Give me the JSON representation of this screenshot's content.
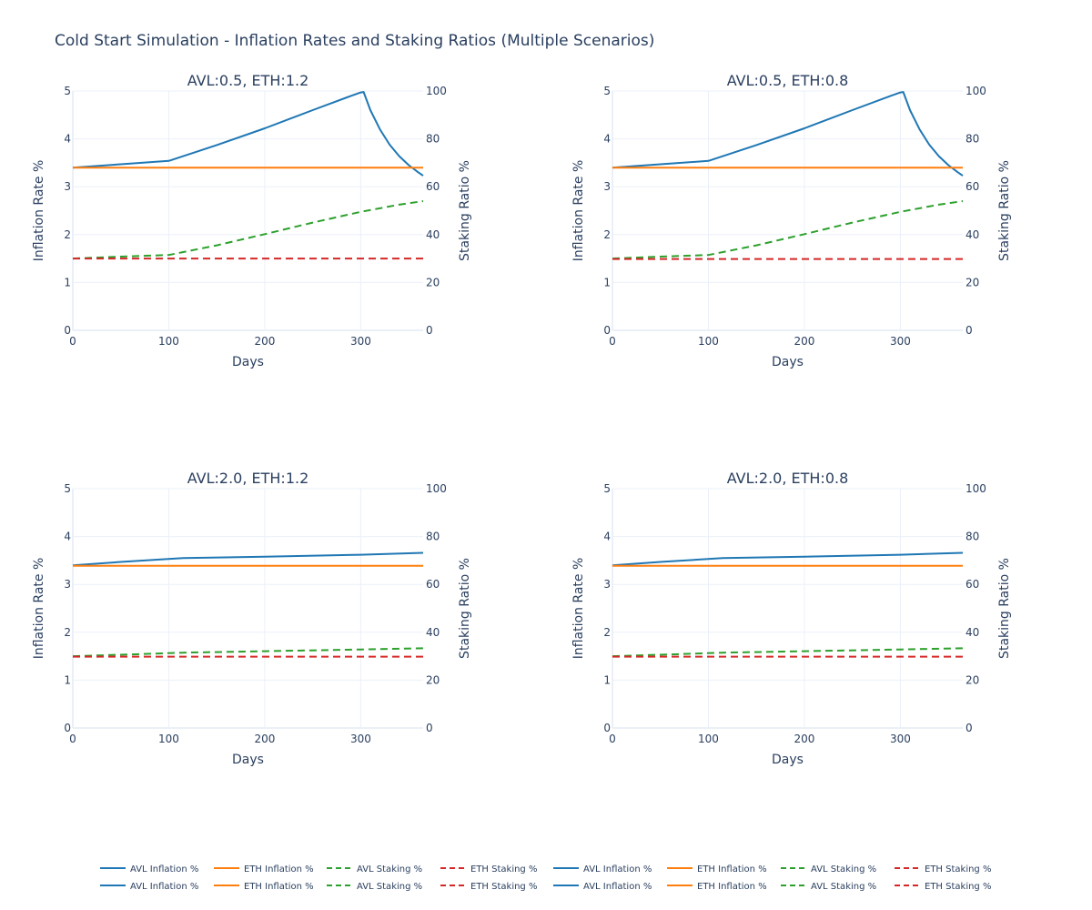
{
  "title": "Cold Start Simulation - Inflation Rates and Staking Ratios (Multiple Scenarios)",
  "colors": {
    "avl_inflation": "#1f77b4",
    "eth_inflation": "#ff7f0e",
    "avl_staking": "#2ca02c",
    "eth_staking": "#d62728",
    "grid": "#ebf0f8",
    "text": "#2a3f5f"
  },
  "legend": {
    "rows": [
      [
        "AVL Inflation %",
        "ETH Inflation %",
        "AVL Staking %",
        "ETH Staking %",
        "AVL Inflation %",
        "ETH Inflation %",
        "AVL Staking %",
        "ETH Staking %"
      ],
      [
        "AVL Inflation %",
        "ETH Inflation %",
        "AVL Staking %",
        "ETH Staking %",
        "AVL Inflation %",
        "ETH Inflation %",
        "AVL Staking %",
        "ETH Staking %"
      ]
    ],
    "styles": [
      "solid",
      "solid",
      "dash",
      "dash",
      "solid",
      "solid",
      "dash",
      "dash"
    ],
    "color_keys": [
      "avl_inflation",
      "eth_inflation",
      "avl_staking",
      "eth_staking",
      "avl_inflation",
      "eth_inflation",
      "avl_staking",
      "eth_staking"
    ],
    "placement": "bottom-center"
  },
  "chart_data": [
    {
      "type": "line",
      "title": "AVL:0.5, ETH:1.2",
      "xlabel": "Days",
      "ylabel": "Inflation Rate %",
      "y2label": "Staking Ratio %",
      "xlim": [
        0,
        365
      ],
      "ylim": [
        0,
        5
      ],
      "y2lim": [
        0,
        100
      ],
      "xticks": [
        0,
        100,
        200,
        300
      ],
      "yticks": [
        0,
        1,
        2,
        3,
        4,
        5
      ],
      "y2ticks": [
        0,
        20,
        40,
        60,
        80,
        100
      ],
      "grid": true,
      "series": [
        {
          "name": "AVL Inflation %",
          "axis": "y",
          "style": "solid",
          "color_key": "avl_inflation",
          "x": [
            0,
            50,
            100,
            150,
            200,
            250,
            290,
            300,
            303,
            310,
            320,
            330,
            340,
            350,
            360,
            365
          ],
          "y": [
            3.4,
            3.47,
            3.54,
            3.87,
            4.22,
            4.6,
            4.9,
            4.97,
            4.98,
            4.6,
            4.2,
            3.88,
            3.64,
            3.45,
            3.3,
            3.23
          ]
        },
        {
          "name": "ETH Inflation %",
          "axis": "y",
          "style": "solid",
          "color_key": "eth_inflation",
          "x": [
            0,
            365
          ],
          "y": [
            3.4,
            3.4
          ]
        },
        {
          "name": "AVL Staking %",
          "axis": "y2",
          "style": "dash",
          "color_key": "avl_staking",
          "x": [
            0,
            50,
            100,
            150,
            200,
            250,
            300,
            340,
            365
          ],
          "y": [
            30,
            30.8,
            31.5,
            35.5,
            40.2,
            45,
            49.5,
            52.5,
            54
          ]
        },
        {
          "name": "ETH Staking %",
          "axis": "y2",
          "style": "dash",
          "color_key": "eth_staking",
          "x": [
            0,
            365
          ],
          "y": [
            30,
            30
          ]
        }
      ]
    },
    {
      "type": "line",
      "title": "AVL:0.5, ETH:0.8",
      "xlabel": "Days",
      "ylabel": "Inflation Rate %",
      "y2label": "Staking Ratio %",
      "xlim": [
        0,
        365
      ],
      "ylim": [
        0,
        5
      ],
      "y2lim": [
        0,
        100
      ],
      "xticks": [
        0,
        100,
        200,
        300
      ],
      "yticks": [
        0,
        1,
        2,
        3,
        4,
        5
      ],
      "y2ticks": [
        0,
        20,
        40,
        60,
        80,
        100
      ],
      "grid": true,
      "series": [
        {
          "name": "AVL Inflation %",
          "axis": "y",
          "style": "solid",
          "color_key": "avl_inflation",
          "x": [
            0,
            50,
            100,
            150,
            200,
            250,
            290,
            300,
            303,
            310,
            320,
            330,
            340,
            350,
            360,
            365
          ],
          "y": [
            3.4,
            3.47,
            3.54,
            3.87,
            4.22,
            4.6,
            4.9,
            4.97,
            4.98,
            4.6,
            4.2,
            3.88,
            3.64,
            3.45,
            3.3,
            3.23
          ]
        },
        {
          "name": "ETH Inflation %",
          "axis": "y",
          "style": "solid",
          "color_key": "eth_inflation",
          "x": [
            0,
            365
          ],
          "y": [
            3.4,
            3.4
          ]
        },
        {
          "name": "AVL Staking %",
          "axis": "y2",
          "style": "dash",
          "color_key": "avl_staking",
          "x": [
            0,
            50,
            100,
            150,
            200,
            250,
            300,
            340,
            365
          ],
          "y": [
            30,
            30.8,
            31.5,
            35.5,
            40.2,
            45,
            49.5,
            52.5,
            54
          ]
        },
        {
          "name": "ETH Staking %",
          "axis": "y2",
          "style": "dash",
          "color_key": "eth_staking",
          "x": [
            0,
            365
          ],
          "y": [
            29.8,
            29.8
          ]
        }
      ]
    },
    {
      "type": "line",
      "title": "AVL:2.0, ETH:1.2",
      "xlabel": "Days",
      "ylabel": "Inflation Rate %",
      "y2label": "Staking Ratio %",
      "xlim": [
        0,
        365
      ],
      "ylim": [
        0,
        5
      ],
      "y2lim": [
        0,
        100
      ],
      "xticks": [
        0,
        100,
        200,
        300
      ],
      "yticks": [
        0,
        1,
        2,
        3,
        4,
        5
      ],
      "y2ticks": [
        0,
        20,
        40,
        60,
        80,
        100
      ],
      "grid": true,
      "series": [
        {
          "name": "AVL Inflation %",
          "axis": "y",
          "style": "solid",
          "color_key": "avl_inflation",
          "x": [
            0,
            50,
            115,
            200,
            300,
            365
          ],
          "y": [
            3.4,
            3.47,
            3.55,
            3.58,
            3.62,
            3.66
          ]
        },
        {
          "name": "ETH Inflation %",
          "axis": "y",
          "style": "solid",
          "color_key": "eth_inflation",
          "x": [
            0,
            365
          ],
          "y": [
            3.39,
            3.39
          ]
        },
        {
          "name": "AVL Staking %",
          "axis": "y2",
          "style": "dash",
          "color_key": "avl_staking",
          "x": [
            0,
            50,
            115,
            200,
            300,
            365
          ],
          "y": [
            30,
            30.6,
            31.5,
            32.1,
            32.8,
            33.3
          ]
        },
        {
          "name": "ETH Staking %",
          "axis": "y2",
          "style": "dash",
          "color_key": "eth_staking",
          "x": [
            0,
            365
          ],
          "y": [
            29.8,
            29.8
          ]
        }
      ]
    },
    {
      "type": "line",
      "title": "AVL:2.0, ETH:0.8",
      "xlabel": "Days",
      "ylabel": "Inflation Rate %",
      "y2label": "Staking Ratio %",
      "xlim": [
        0,
        365
      ],
      "ylim": [
        0,
        5
      ],
      "y2lim": [
        0,
        100
      ],
      "xticks": [
        0,
        100,
        200,
        300
      ],
      "yticks": [
        0,
        1,
        2,
        3,
        4,
        5
      ],
      "y2ticks": [
        0,
        20,
        40,
        60,
        80,
        100
      ],
      "grid": true,
      "series": [
        {
          "name": "AVL Inflation %",
          "axis": "y",
          "style": "solid",
          "color_key": "avl_inflation",
          "x": [
            0,
            50,
            115,
            200,
            300,
            365
          ],
          "y": [
            3.4,
            3.47,
            3.55,
            3.58,
            3.62,
            3.66
          ]
        },
        {
          "name": "ETH Inflation %",
          "axis": "y",
          "style": "solid",
          "color_key": "eth_inflation",
          "x": [
            0,
            365
          ],
          "y": [
            3.39,
            3.39
          ]
        },
        {
          "name": "AVL Staking %",
          "axis": "y2",
          "style": "dash",
          "color_key": "avl_staking",
          "x": [
            0,
            50,
            115,
            200,
            300,
            365
          ],
          "y": [
            30,
            30.6,
            31.5,
            32.1,
            32.8,
            33.3
          ]
        },
        {
          "name": "ETH Staking %",
          "axis": "y2",
          "style": "dash",
          "color_key": "eth_staking",
          "x": [
            0,
            365
          ],
          "y": [
            29.8,
            29.8
          ]
        }
      ]
    }
  ]
}
